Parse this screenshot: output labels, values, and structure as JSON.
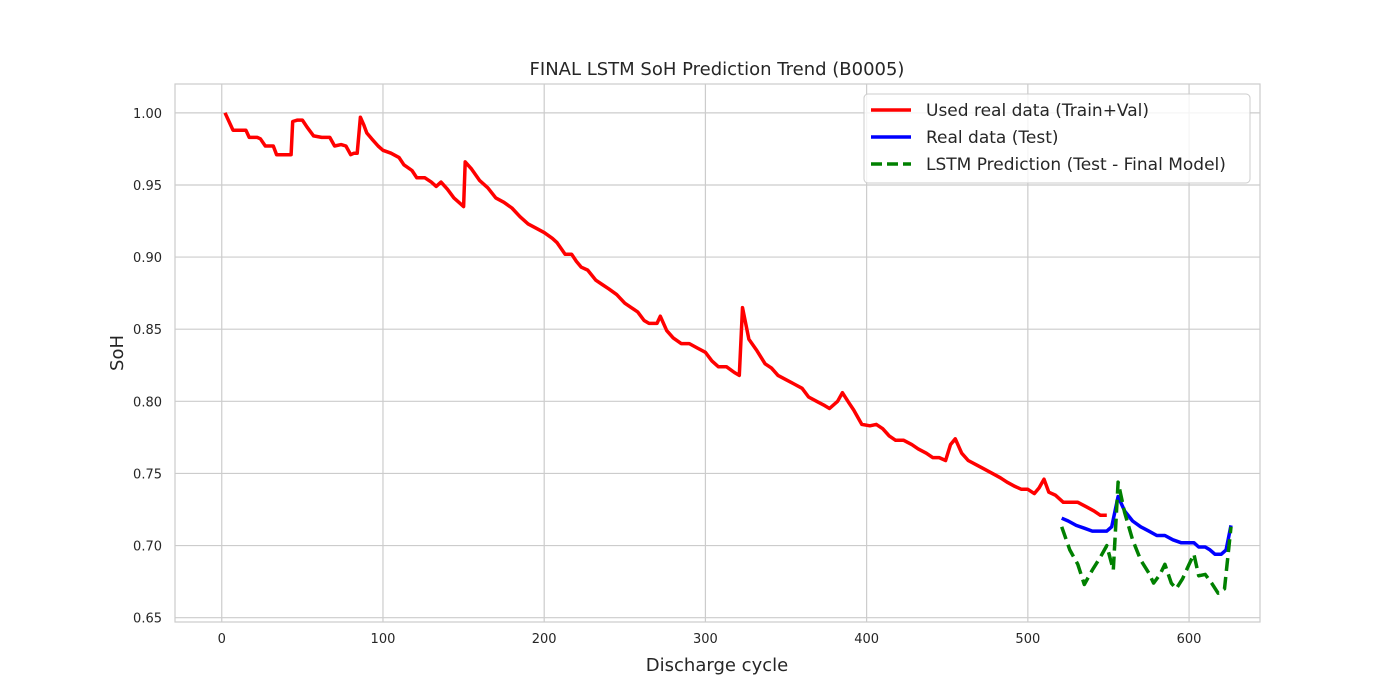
{
  "chart_data": {
    "type": "line",
    "title": "FINAL LSTM SoH Prediction Trend (B0005)",
    "xlabel": "Discharge cycle",
    "ylabel": "SoH",
    "xlim": [
      -29,
      644
    ],
    "ylim": [
      0.647,
      1.02
    ],
    "xticks": [
      0,
      100,
      200,
      300,
      400,
      500,
      600
    ],
    "yticks": [
      0.65,
      0.7,
      0.75,
      0.8,
      0.85,
      0.9,
      0.95,
      1.0
    ],
    "ytick_labels": [
      "0.65",
      "0.70",
      "0.75",
      "0.80",
      "0.85",
      "0.90",
      "0.95",
      "1.00"
    ],
    "grid": true,
    "legend_position": "top-right",
    "series": [
      {
        "name": "Used real data (Train+Val)",
        "color": "#ff0000",
        "style": "solid",
        "points": [
          [
            2,
            1.0
          ],
          [
            7,
            0.988
          ],
          [
            12,
            0.988
          ],
          [
            15,
            0.988
          ],
          [
            17,
            0.983
          ],
          [
            22,
            0.983
          ],
          [
            24,
            0.982
          ],
          [
            27,
            0.977
          ],
          [
            29,
            0.977
          ],
          [
            32,
            0.977
          ],
          [
            34,
            0.971
          ],
          [
            38,
            0.971
          ],
          [
            41,
            0.971
          ],
          [
            43,
            0.971
          ],
          [
            44,
            0.994
          ],
          [
            47,
            0.995
          ],
          [
            50,
            0.995
          ],
          [
            53,
            0.99
          ],
          [
            57,
            0.984
          ],
          [
            62,
            0.983
          ],
          [
            64,
            0.983
          ],
          [
            67,
            0.983
          ],
          [
            70,
            0.977
          ],
          [
            74,
            0.978
          ],
          [
            77,
            0.977
          ],
          [
            80,
            0.971
          ],
          [
            82,
            0.972
          ],
          [
            84,
            0.972
          ],
          [
            86,
            0.997
          ],
          [
            88,
            0.992
          ],
          [
            90,
            0.986
          ],
          [
            93,
            0.982
          ],
          [
            97,
            0.977
          ],
          [
            100,
            0.974
          ],
          [
            105,
            0.972
          ],
          [
            110,
            0.969
          ],
          [
            113,
            0.964
          ],
          [
            118,
            0.96
          ],
          [
            121,
            0.955
          ],
          [
            126,
            0.955
          ],
          [
            130,
            0.952
          ],
          [
            133,
            0.949
          ],
          [
            136,
            0.952
          ],
          [
            140,
            0.947
          ],
          [
            144,
            0.941
          ],
          [
            148,
            0.937
          ],
          [
            150,
            0.935
          ],
          [
            151,
            0.966
          ],
          [
            155,
            0.961
          ],
          [
            160,
            0.953
          ],
          [
            165,
            0.948
          ],
          [
            170,
            0.941
          ],
          [
            175,
            0.938
          ],
          [
            180,
            0.934
          ],
          [
            185,
            0.928
          ],
          [
            190,
            0.923
          ],
          [
            195,
            0.92
          ],
          [
            200,
            0.917
          ],
          [
            205,
            0.913
          ],
          [
            208,
            0.91
          ],
          [
            213,
            0.902
          ],
          [
            217,
            0.902
          ],
          [
            220,
            0.897
          ],
          [
            223,
            0.893
          ],
          [
            227,
            0.891
          ],
          [
            232,
            0.884
          ],
          [
            236,
            0.881
          ],
          [
            240,
            0.878
          ],
          [
            245,
            0.874
          ],
          [
            250,
            0.868
          ],
          [
            254,
            0.865
          ],
          [
            258,
            0.862
          ],
          [
            262,
            0.856
          ],
          [
            265,
            0.854
          ],
          [
            270,
            0.854
          ],
          [
            272,
            0.859
          ],
          [
            276,
            0.849
          ],
          [
            280,
            0.844
          ],
          [
            285,
            0.84
          ],
          [
            290,
            0.84
          ],
          [
            295,
            0.837
          ],
          [
            300,
            0.834
          ],
          [
            304,
            0.828
          ],
          [
            308,
            0.824
          ],
          [
            313,
            0.824
          ],
          [
            318,
            0.82
          ],
          [
            321,
            0.818
          ],
          [
            323,
            0.865
          ],
          [
            327,
            0.843
          ],
          [
            332,
            0.835
          ],
          [
            337,
            0.826
          ],
          [
            341,
            0.823
          ],
          [
            345,
            0.818
          ],
          [
            350,
            0.815
          ],
          [
            355,
            0.812
          ],
          [
            360,
            0.809
          ],
          [
            364,
            0.803
          ],
          [
            369,
            0.8
          ],
          [
            374,
            0.797
          ],
          [
            377,
            0.795
          ],
          [
            382,
            0.8
          ],
          [
            385,
            0.806
          ],
          [
            389,
            0.799
          ],
          [
            392,
            0.794
          ],
          [
            397,
            0.784
          ],
          [
            402,
            0.783
          ],
          [
            406,
            0.784
          ],
          [
            410,
            0.781
          ],
          [
            414,
            0.776
          ],
          [
            418,
            0.773
          ],
          [
            423,
            0.773
          ],
          [
            428,
            0.77
          ],
          [
            432,
            0.767
          ],
          [
            437,
            0.764
          ],
          [
            441,
            0.761
          ],
          [
            445,
            0.761
          ],
          [
            449,
            0.759
          ],
          [
            452,
            0.77
          ],
          [
            455,
            0.774
          ],
          [
            459,
            0.764
          ],
          [
            463,
            0.759
          ],
          [
            468,
            0.756
          ],
          [
            473,
            0.753
          ],
          [
            478,
            0.75
          ],
          [
            483,
            0.747
          ],
          [
            487,
            0.744
          ],
          [
            492,
            0.741
          ],
          [
            496,
            0.739
          ],
          [
            500,
            0.739
          ],
          [
            504,
            0.736
          ],
          [
            507,
            0.74
          ],
          [
            510,
            0.746
          ],
          [
            513,
            0.737
          ],
          [
            517,
            0.735
          ],
          [
            522,
            0.73
          ],
          [
            527,
            0.73
          ],
          [
            531,
            0.73
          ],
          [
            536,
            0.727
          ],
          [
            541,
            0.724
          ],
          [
            545,
            0.721
          ],
          [
            549,
            0.721
          ]
        ]
      },
      {
        "name": "Real data (Test)",
        "color": "#0000ff",
        "style": "solid",
        "points": [
          [
            521,
            0.719
          ],
          [
            525,
            0.717
          ],
          [
            530,
            0.714
          ],
          [
            535,
            0.712
          ],
          [
            540,
            0.71
          ],
          [
            545,
            0.71
          ],
          [
            548,
            0.71
          ],
          [
            549,
            0.71
          ],
          [
            552,
            0.713
          ],
          [
            556,
            0.734
          ],
          [
            560,
            0.724
          ],
          [
            565,
            0.717
          ],
          [
            570,
            0.713
          ],
          [
            575,
            0.71
          ],
          [
            580,
            0.707
          ],
          [
            585,
            0.707
          ],
          [
            590,
            0.704
          ],
          [
            595,
            0.702
          ],
          [
            600,
            0.702
          ],
          [
            603,
            0.702
          ],
          [
            606,
            0.699
          ],
          [
            610,
            0.699
          ],
          [
            613,
            0.697
          ],
          [
            616,
            0.694
          ],
          [
            620,
            0.694
          ],
          [
            623,
            0.697
          ],
          [
            626,
            0.714
          ]
        ]
      },
      {
        "name": "LSTM Prediction (Test - Final Model)",
        "color": "#008000",
        "style": "dashed",
        "points": [
          [
            521,
            0.713
          ],
          [
            526,
            0.697
          ],
          [
            531,
            0.687
          ],
          [
            535,
            0.673
          ],
          [
            540,
            0.683
          ],
          [
            545,
            0.692
          ],
          [
            549,
            0.7
          ],
          [
            553,
            0.683
          ],
          [
            556,
            0.744
          ],
          [
            560,
            0.723
          ],
          [
            565,
            0.704
          ],
          [
            570,
            0.69
          ],
          [
            575,
            0.681
          ],
          [
            578,
            0.674
          ],
          [
            582,
            0.68
          ],
          [
            585,
            0.687
          ],
          [
            589,
            0.674
          ],
          [
            592,
            0.67
          ],
          [
            596,
            0.677
          ],
          [
            600,
            0.687
          ],
          [
            603,
            0.694
          ],
          [
            606,
            0.679
          ],
          [
            610,
            0.68
          ],
          [
            614,
            0.674
          ],
          [
            618,
            0.667
          ],
          [
            622,
            0.67
          ],
          [
            626,
            0.713
          ]
        ]
      }
    ]
  }
}
